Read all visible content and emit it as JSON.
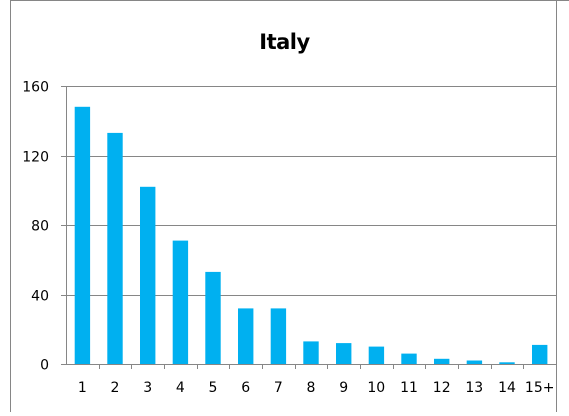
{
  "chart_data": {
    "type": "bar",
    "title": "Italy",
    "xlabel": "",
    "ylabel": "",
    "categories": [
      "1",
      "2",
      "3",
      "4",
      "5",
      "6",
      "7",
      "8",
      "9",
      "10",
      "11",
      "12",
      "13",
      "14",
      "15+"
    ],
    "values": [
      148,
      133,
      102,
      71,
      53,
      32,
      32,
      13,
      12,
      10,
      6,
      3,
      2,
      1,
      11
    ],
    "ylim": [
      0,
      160
    ],
    "yticks": [
      "0",
      "40",
      "80",
      "120",
      "160"
    ],
    "grid": true,
    "legend": "none",
    "bar_color": "#00b0f0"
  }
}
